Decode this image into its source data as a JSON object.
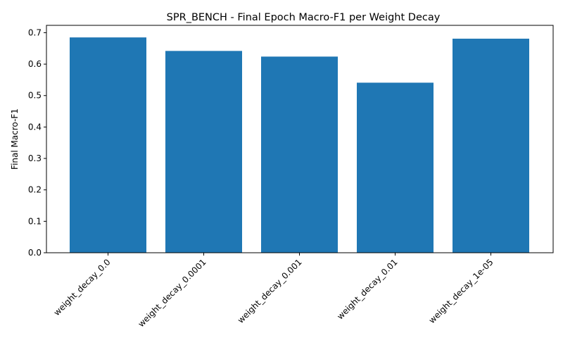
{
  "chart_data": {
    "type": "bar",
    "title": "SPR_BENCH - Final Epoch Macro-F1 per Weight Decay",
    "xlabel": "",
    "ylabel": "Final Macro-F1",
    "categories": [
      "weight_decay_0.0",
      "weight_decay_0.0001",
      "weight_decay_0.001",
      "weight_decay_0.01",
      "weight_decay_1e-05"
    ],
    "values": [
      0.685,
      0.642,
      0.624,
      0.541,
      0.681
    ],
    "ylim": [
      0,
      0.7
    ],
    "yticks": [
      "0.0",
      "0.1",
      "0.2",
      "0.3",
      "0.4",
      "0.5",
      "0.6",
      "0.7"
    ],
    "grid": false,
    "bar_color": "#1f77b4"
  }
}
